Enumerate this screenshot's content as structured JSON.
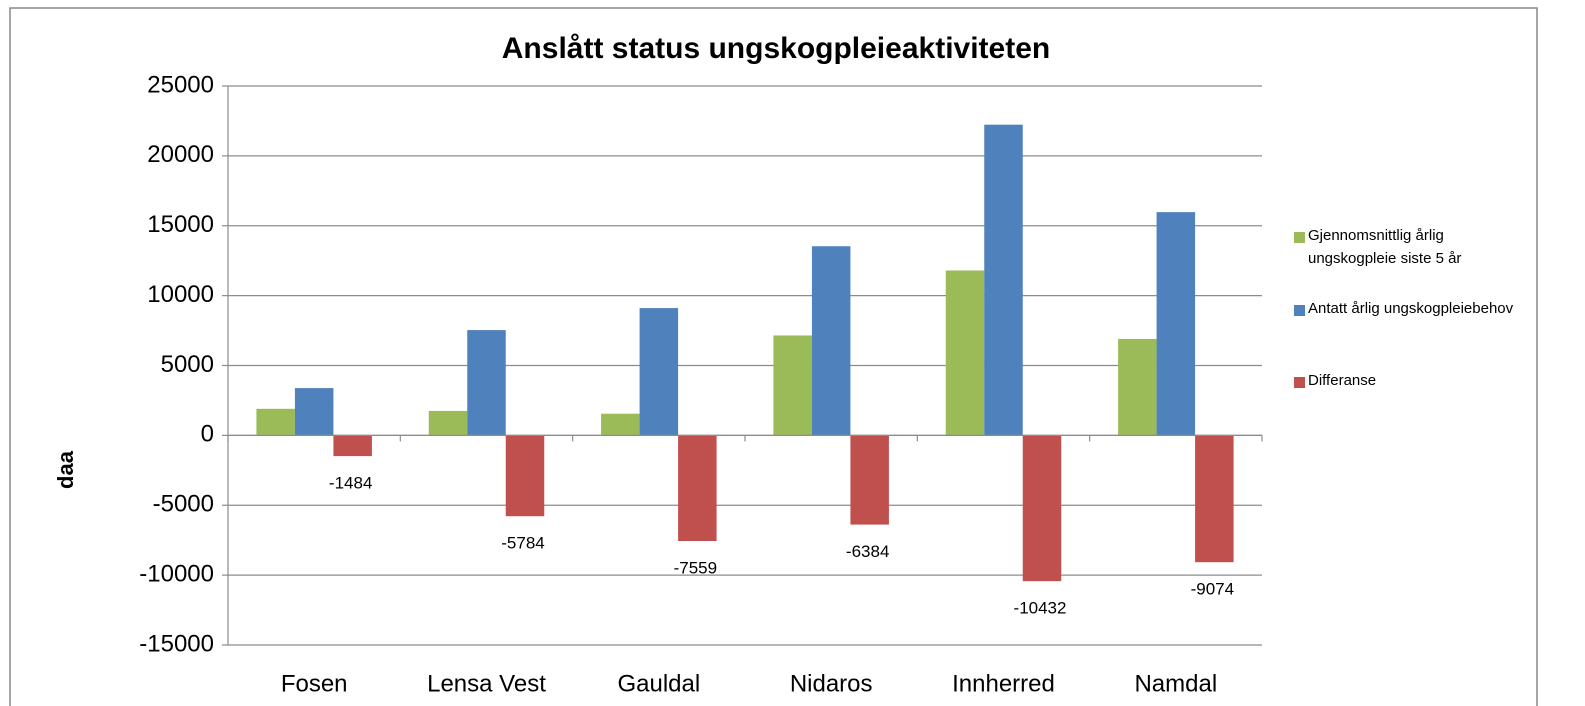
{
  "chart_data": {
    "type": "bar",
    "title": "Anslått  status ungskogpleieaktiviteten",
    "y_label": "daa",
    "categories": [
      "Fosen",
      "Lensa Vest",
      "Gauldal",
      "Nidaros",
      "Innherred",
      "Namdal"
    ],
    "series": [
      {
        "name": "Gjennomsnittlig årlig ungskogpleie siste 5 år",
        "color": "#9bbb59",
        "values": [
          1900,
          1750,
          1550,
          7150,
          11800,
          6900
        ]
      },
      {
        "name": "Antatt årlig ungskogpleiebehov",
        "color": "#4f81bd",
        "values": [
          3384,
          7534,
          9109,
          13534,
          22232,
          15974
        ]
      },
      {
        "name": "Differanse",
        "color": "#c0504d",
        "values": [
          -1484,
          -5784,
          -7559,
          -6384,
          -10432,
          -9074
        ]
      }
    ],
    "ylim": [
      -15000,
      25000
    ],
    "yticks": [
      -15000,
      -10000,
      -5000,
      0,
      5000,
      10000,
      15000,
      20000,
      25000
    ],
    "grid": true,
    "legend": "right"
  }
}
